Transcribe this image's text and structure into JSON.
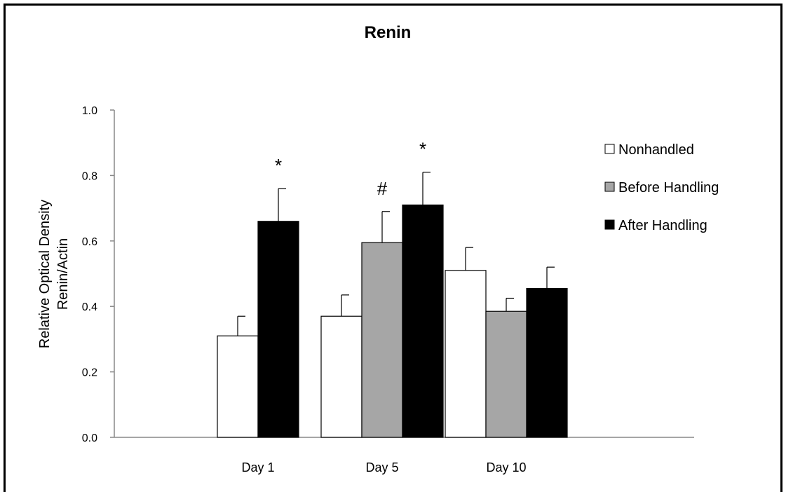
{
  "chart_data": {
    "type": "bar",
    "title": "Renin",
    "ylabel_lines": [
      "Relative Optical Density",
      "Renin/Actin"
    ],
    "xlabel": "",
    "ylim": [
      0,
      1.0
    ],
    "yticks": [
      "0.0",
      "0.2",
      "0.4",
      "0.6",
      "0.8",
      "1.0"
    ],
    "categories": [
      "Day  1",
      "Day 5",
      "Day 10"
    ],
    "series": [
      {
        "name": "Nonhandled",
        "color": "#ffffff",
        "values": [
          0.31,
          0.37,
          0.51
        ],
        "errors": [
          0.06,
          0.065,
          0.07
        ]
      },
      {
        "name": "Before Handling",
        "color": "#a6a6a6",
        "values": [
          null,
          0.595,
          0.385
        ],
        "errors": [
          null,
          0.095,
          0.04
        ]
      },
      {
        "name": "After Handling",
        "color": "#000000",
        "values": [
          0.66,
          0.71,
          0.455
        ],
        "errors": [
          0.1,
          0.1,
          0.065
        ]
      }
    ],
    "annotations": [
      {
        "text": "*",
        "category": "Day  1",
        "series": "After Handling"
      },
      {
        "text": "#",
        "category": "Day 5",
        "series": "Before Handling"
      },
      {
        "text": "*",
        "category": "Day 5",
        "series": "After Handling"
      }
    ],
    "grid": false,
    "legend_position": "right"
  }
}
